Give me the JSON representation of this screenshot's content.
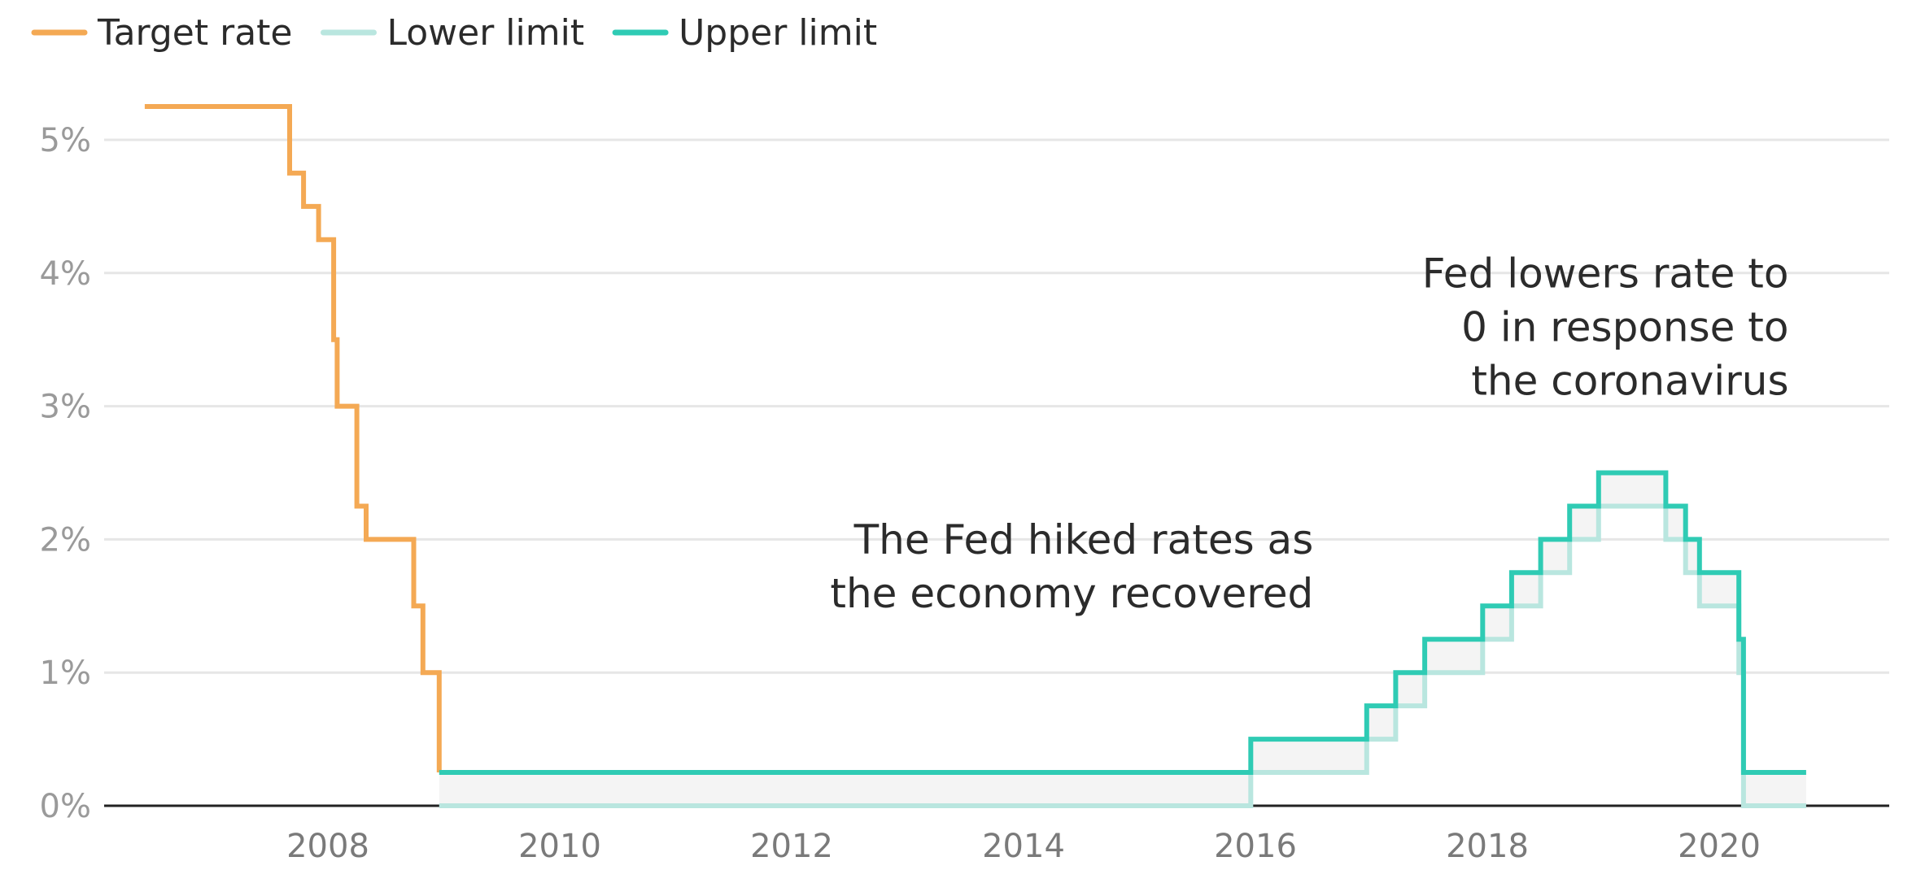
{
  "chart_data": {
    "type": "line",
    "step": true,
    "xlabel": "",
    "ylabel": "",
    "x_ticks": [
      "2008",
      "2010",
      "2012",
      "2014",
      "2016",
      "2018",
      "2020"
    ],
    "x_tick_values": [
      2008,
      2010,
      2012,
      2014,
      2016,
      2018,
      2020
    ],
    "y_ticks": [
      "0%",
      "1%",
      "2%",
      "3%",
      "4%",
      "5%"
    ],
    "y_tick_values": [
      0,
      1,
      2,
      3,
      4,
      5
    ],
    "xlim": [
      2006.25,
      2021.25
    ],
    "ylim": [
      0,
      5.25
    ],
    "grid": true,
    "legend_position": "top-left",
    "band_fill_color": "#f4f4f4",
    "series": [
      {
        "name": "Target rate",
        "color": "#f4a954",
        "points": [
          [
            2006.42,
            5.25
          ],
          [
            2007.67,
            5.25
          ],
          [
            2007.67,
            4.75
          ],
          [
            2007.79,
            4.75
          ],
          [
            2007.79,
            4.5
          ],
          [
            2007.92,
            4.5
          ],
          [
            2007.92,
            4.25
          ],
          [
            2008.05,
            4.25
          ],
          [
            2008.05,
            3.5
          ],
          [
            2008.08,
            3.5
          ],
          [
            2008.08,
            3.0
          ],
          [
            2008.25,
            3.0
          ],
          [
            2008.25,
            2.25
          ],
          [
            2008.33,
            2.25
          ],
          [
            2008.33,
            2.0
          ],
          [
            2008.74,
            2.0
          ],
          [
            2008.74,
            1.5
          ],
          [
            2008.82,
            1.5
          ],
          [
            2008.82,
            1.0
          ],
          [
            2008.96,
            1.0
          ],
          [
            2008.96,
            0.25
          ]
        ]
      },
      {
        "name": "Lower limit",
        "color": "#b9e6df",
        "points": [
          [
            2008.96,
            0.0
          ],
          [
            2015.96,
            0.0
          ],
          [
            2015.96,
            0.25
          ],
          [
            2016.96,
            0.25
          ],
          [
            2016.96,
            0.5
          ],
          [
            2017.21,
            0.5
          ],
          [
            2017.21,
            0.75
          ],
          [
            2017.46,
            0.75
          ],
          [
            2017.46,
            1.0
          ],
          [
            2017.96,
            1.0
          ],
          [
            2017.96,
            1.25
          ],
          [
            2018.21,
            1.25
          ],
          [
            2018.21,
            1.5
          ],
          [
            2018.46,
            1.5
          ],
          [
            2018.46,
            1.75
          ],
          [
            2018.71,
            1.75
          ],
          [
            2018.71,
            2.0
          ],
          [
            2018.96,
            2.0
          ],
          [
            2018.96,
            2.25
          ],
          [
            2019.54,
            2.25
          ],
          [
            2019.54,
            2.0
          ],
          [
            2019.71,
            2.0
          ],
          [
            2019.71,
            1.75
          ],
          [
            2019.83,
            1.75
          ],
          [
            2019.83,
            1.5
          ],
          [
            2020.17,
            1.5
          ],
          [
            2020.17,
            1.0
          ],
          [
            2020.21,
            1.0
          ],
          [
            2020.21,
            0.0
          ],
          [
            2020.75,
            0.0
          ]
        ]
      },
      {
        "name": "Upper limit",
        "color": "#2fcbb4",
        "points": [
          [
            2008.96,
            0.25
          ],
          [
            2015.96,
            0.25
          ],
          [
            2015.96,
            0.5
          ],
          [
            2016.96,
            0.5
          ],
          [
            2016.96,
            0.75
          ],
          [
            2017.21,
            0.75
          ],
          [
            2017.21,
            1.0
          ],
          [
            2017.46,
            1.0
          ],
          [
            2017.46,
            1.25
          ],
          [
            2017.96,
            1.25
          ],
          [
            2017.96,
            1.5
          ],
          [
            2018.21,
            1.5
          ],
          [
            2018.21,
            1.75
          ],
          [
            2018.46,
            1.75
          ],
          [
            2018.46,
            2.0
          ],
          [
            2018.71,
            2.0
          ],
          [
            2018.71,
            2.25
          ],
          [
            2018.96,
            2.25
          ],
          [
            2018.96,
            2.5
          ],
          [
            2019.54,
            2.5
          ],
          [
            2019.54,
            2.25
          ],
          [
            2019.71,
            2.25
          ],
          [
            2019.71,
            2.0
          ],
          [
            2019.83,
            2.0
          ],
          [
            2019.83,
            1.75
          ],
          [
            2020.17,
            1.75
          ],
          [
            2020.17,
            1.25
          ],
          [
            2020.21,
            1.25
          ],
          [
            2020.21,
            0.25
          ],
          [
            2020.75,
            0.25
          ]
        ]
      }
    ],
    "annotations": [
      {
        "lines": [
          "The Fed hiked rates as",
          "the economy recovered"
        ],
        "x": 2016.5,
        "y": 1.8,
        "align": "end"
      },
      {
        "lines": [
          "Fed lowers rate to",
          "0 in response to",
          "the coronavirus"
        ],
        "x": 2020.6,
        "y": 3.6,
        "align": "end"
      }
    ]
  }
}
